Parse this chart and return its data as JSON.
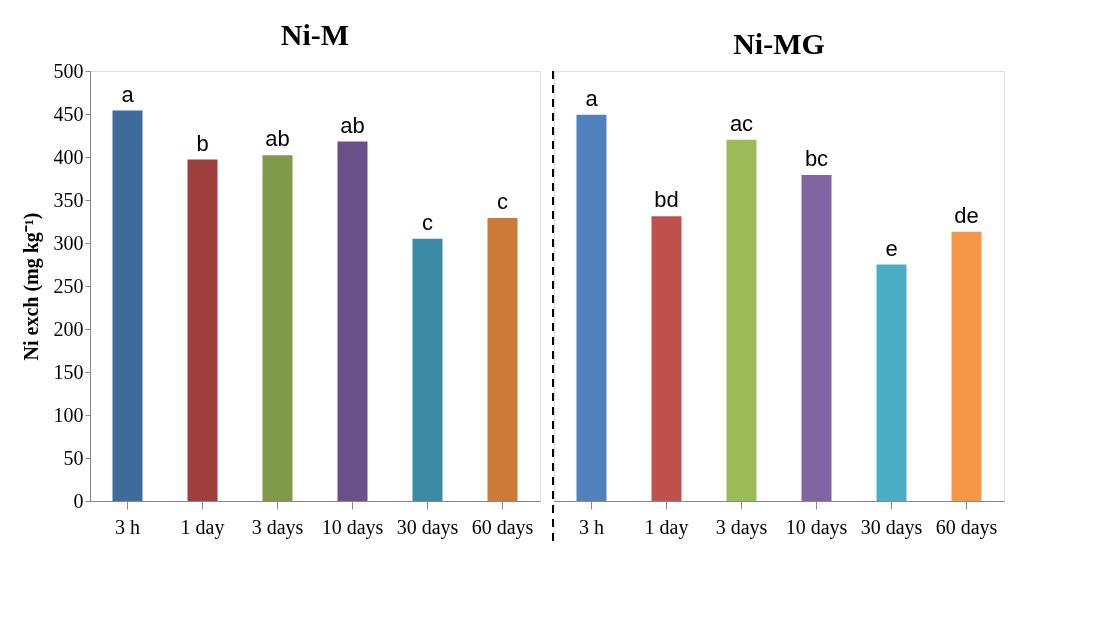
{
  "chart_data": [
    {
      "type": "bar",
      "title": "Ni-M",
      "ylabel": "Ni exch (mg kg⁻¹)",
      "categories": [
        "3 h",
        "1 day",
        "3 days",
        "10 days",
        "30 days",
        "60 days"
      ],
      "values": [
        454,
        397,
        402,
        418,
        305,
        329
      ],
      "colors": [
        "#3e6a9c",
        "#9e3f3d",
        "#7f9a48",
        "#6a5088",
        "#3b8ba4",
        "#cd7a39"
      ],
      "value_labels": [
        "a",
        "b",
        "ab",
        "ab",
        "c",
        "c"
      ],
      "ylim": [
        0,
        500
      ],
      "yticks": [
        0,
        50,
        100,
        150,
        200,
        250,
        300,
        350,
        400,
        450,
        500
      ],
      "grid": false
    },
    {
      "type": "bar",
      "title": "Ni-MG",
      "categories": [
        "3 h",
        "1 day",
        "3 days",
        "10 days",
        "30 days",
        "60 days"
      ],
      "values": [
        449,
        331,
        420,
        379,
        275,
        313
      ],
      "colors": [
        "#4f81bd",
        "#c0504d",
        "#9bbb59",
        "#8064a2",
        "#4bacc6",
        "#f79646"
      ],
      "value_labels": [
        "a",
        "bd",
        "ac",
        "bc",
        "e",
        "de"
      ],
      "ylim": [
        0,
        500
      ],
      "tick_labels": "x",
      "grid": false
    }
  ]
}
